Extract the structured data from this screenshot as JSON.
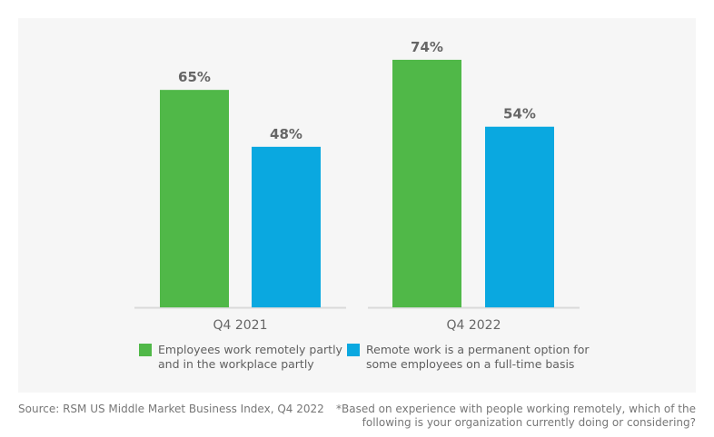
{
  "chart_data": {
    "type": "bar",
    "categories": [
      "Q4 2021",
      "Q4 2022"
    ],
    "series": [
      {
        "name": "Employees work remotely partly and in the workplace partly",
        "color": "#50b848",
        "values": [
          65,
          74
        ],
        "labels": [
          "65%",
          "74%"
        ]
      },
      {
        "name": "Remote work is a permanent option for some employees on a full-time basis",
        "color": "#0aa8e0",
        "values": [
          48,
          54
        ],
        "labels": [
          "48%",
          "54%"
        ]
      }
    ],
    "ylim": [
      0,
      100
    ],
    "grid": false,
    "legend_position": "bottom",
    "legend": [
      {
        "line1": "Employees work remotely partly",
        "line2": "and in the workplace partly"
      },
      {
        "line1": "Remote work is a permanent option for",
        "line2": "some employees on a full-time basis"
      }
    ]
  },
  "footer": {
    "source": "Source: RSM US Middle Market Business Index, Q4 2022",
    "note_line1": "*Based on experience with people working remotely, which of the",
    "note_line2": "following is your organization currently doing or considering?"
  }
}
